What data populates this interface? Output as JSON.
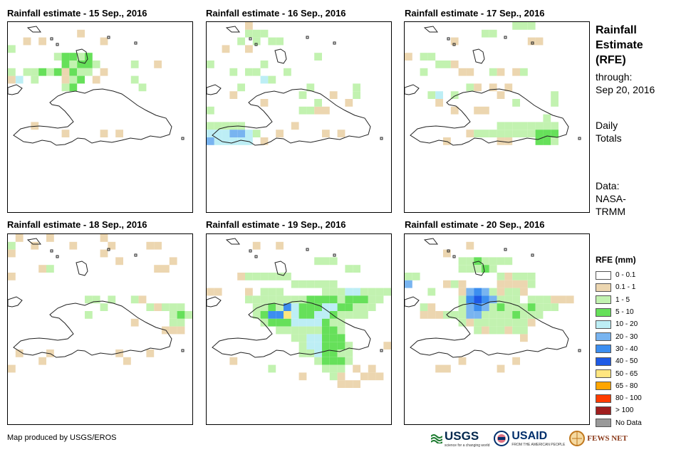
{
  "panels": [
    {
      "title": "Rainfall estimate - 15 Sep., 2016"
    },
    {
      "title": "Rainfall estimate - 16 Sep., 2016"
    },
    {
      "title": "Rainfall estimate - 17 Sep., 2016"
    },
    {
      "title": "Rainfall estimate - 18 Sep., 2016"
    },
    {
      "title": "Rainfall estimate - 19 Sep., 2016"
    },
    {
      "title": "Rainfall estimate - 20 Sep., 2016"
    }
  ],
  "side": {
    "title": "Rainfall Estimate (RFE)",
    "through_label": "through:",
    "through_date": "Sep 20, 2016",
    "totals": "Daily Totals",
    "data_label": "Data:",
    "data_source": "NASA-TRMM"
  },
  "legend": {
    "title": "RFE (mm)",
    "items": [
      {
        "label": "0 - 0.1",
        "color": "#ffffff"
      },
      {
        "label": "0.1 - 1",
        "color": "#ecd6b0"
      },
      {
        "label": "1 - 5",
        "color": "#c2f2b0"
      },
      {
        "label": "5 - 10",
        "color": "#66e05a"
      },
      {
        "label": "10 - 20",
        "color": "#bdeef5"
      },
      {
        "label": "20 - 30",
        "color": "#78b4f0"
      },
      {
        "label": "30 - 40",
        "color": "#3c8ef0"
      },
      {
        "label": "40 - 50",
        "color": "#1e5ae6"
      },
      {
        "label": "50 - 65",
        "color": "#ffe680"
      },
      {
        "label": "65 - 80",
        "color": "#ffa500"
      },
      {
        "label": "80 - 100",
        "color": "#ff3c00"
      },
      {
        "label": "> 100",
        "color": "#a01e1e"
      },
      {
        "label": "No Data",
        "color": "#999999"
      }
    ]
  },
  "credit": "Map produced by USGS/EROS",
  "logos": {
    "usgs": "USGS",
    "usgs_tag": "science for a changing world",
    "usaid": "USAID",
    "usaid_tag": "FROM THE AMERICAN PEOPLE",
    "fews": "FEWS NET"
  }
}
